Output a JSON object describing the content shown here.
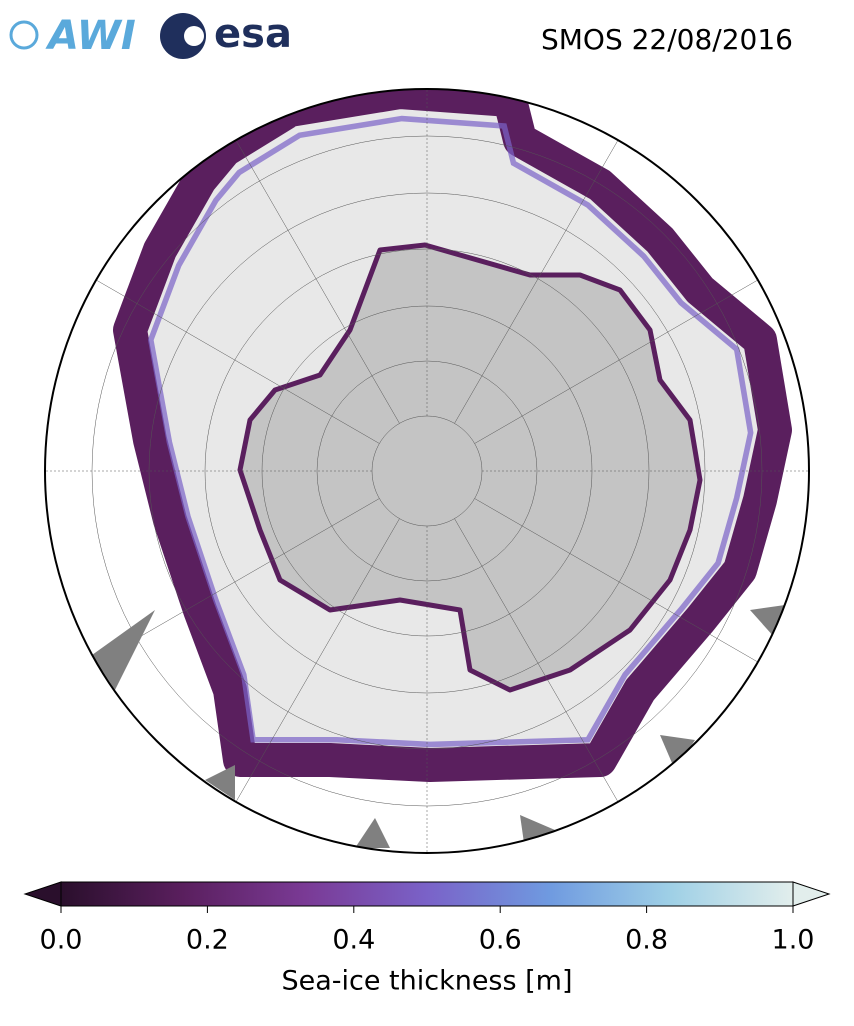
{
  "header": {
    "logos": [
      "AWI",
      "esa"
    ],
    "title": "SMOS 22/08/2016"
  },
  "colorbar": {
    "label": "Sea-ice thickness [m]",
    "lim": [
      0,
      1
    ],
    "ticks": [
      {
        "value": 0,
        "label": "0.0"
      },
      {
        "value": 0.2,
        "label": "0.2"
      },
      {
        "value": 0.4,
        "label": "0.4"
      },
      {
        "value": 0.6,
        "label": "0.6"
      },
      {
        "value": 0.8,
        "label": "0.8"
      },
      {
        "value": 1,
        "label": "1.0"
      }
    ],
    "colors": [
      "#2a0f2c",
      "#5a1f5e",
      "#7a3a95",
      "#7a62c8",
      "#6f9ae0",
      "#9fd0e6",
      "#e2eeec"
    ]
  }
}
